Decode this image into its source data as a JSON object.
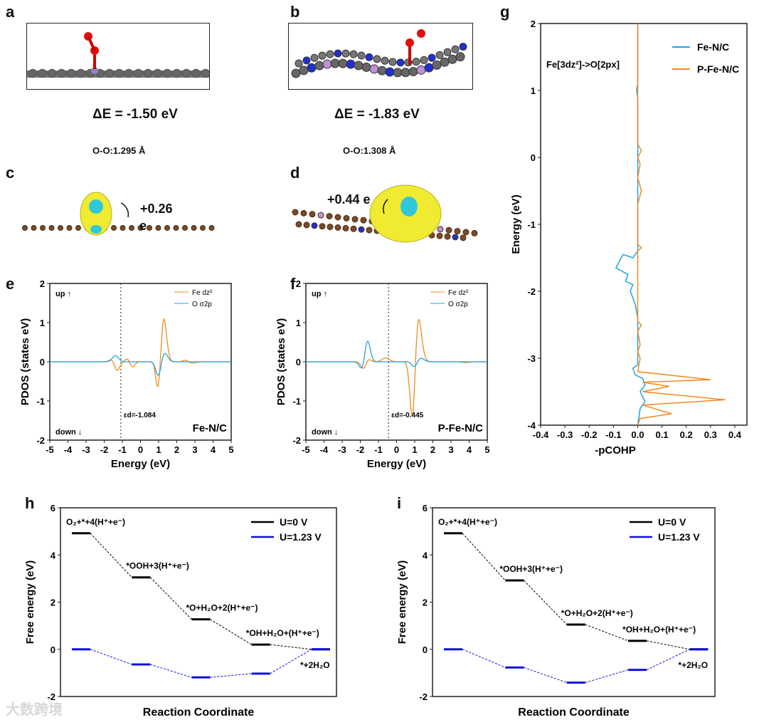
{
  "panels": {
    "a": "a",
    "b": "b",
    "c": "c",
    "d": "d",
    "e": "e",
    "f": "f",
    "g": "g",
    "h": "h",
    "i": "i"
  },
  "structures": {
    "a": {
      "delta_e": "ΔE = -1.50 eV",
      "oo": "O-O:1.295 Å"
    },
    "b": {
      "delta_e": "ΔE = -1.83 eV",
      "oo": "O-O:1.308 Å"
    },
    "c": {
      "charge": "+0.26",
      "unit": "e"
    },
    "d": {
      "charge": "+0.44 e"
    }
  },
  "watermark": "大数跨境",
  "colors": {
    "orange": "#f28a1e",
    "blue": "#1fa3e0",
    "black": "#000000",
    "navy": "#1010e0"
  },
  "chart_data": [
    {
      "id": "e",
      "type": "line",
      "title": "Fe-N/C",
      "xlabel": "Energy (eV)",
      "ylabel": "PDOS (states eV)",
      "xlim": [
        -5,
        5
      ],
      "ylim": [
        -2,
        2
      ],
      "xticks": [
        -5,
        -4,
        -3,
        -2,
        -1,
        0,
        1,
        2,
        3,
        4,
        5
      ],
      "yticks": [
        -2,
        -1,
        0,
        1,
        2
      ],
      "up": "up",
      "down": "down",
      "ed_label": "εd=-1.084",
      "ed": -1.084,
      "legend": [
        "Fe dz²",
        "O σ2p"
      ],
      "legend_position": "top-right",
      "series": [
        {
          "name": "Fe dz²",
          "color": "#f28a1e",
          "peaks": [
            [
              -1.4,
              0.48,
              0.18
            ],
            [
              -0.65,
              0.15,
              0.15
            ],
            [
              0.8,
              0.1,
              0.12
            ],
            [
              1.25,
              1.28,
              0.17
            ],
            [
              2.5,
              0.05,
              0.15
            ],
            [
              -1.35,
              -0.65,
              0.17
            ],
            [
              -0.5,
              -0.2,
              0.15
            ],
            [
              1.0,
              -1.0,
              0.15
            ],
            [
              2.8,
              -0.04,
              0.2
            ]
          ]
        },
        {
          "name": "O σ2p",
          "color": "#1fa3e0",
          "peaks": [
            [
              -1.35,
              0.25,
              0.18
            ],
            [
              1.3,
              0.25,
              0.18
            ],
            [
              -1.3,
              -0.1,
              0.18
            ],
            [
              1.0,
              -0.4,
              0.15
            ]
          ]
        }
      ]
    },
    {
      "id": "f",
      "type": "line",
      "title": "P-Fe-N/C",
      "xlabel": "Energy (eV)",
      "ylabel": "PDOS (states eV)",
      "xlim": [
        -5,
        5
      ],
      "ylim": [
        -2,
        2
      ],
      "xticks": [
        -5,
        -4,
        -3,
        -2,
        -1,
        0,
        1,
        2,
        3,
        4,
        5
      ],
      "yticks": [
        -2,
        -1,
        0,
        1,
        2
      ],
      "up": "up",
      "down": "down",
      "ed_label": "εd=-0.445",
      "ed": -0.445,
      "legend": [
        "Fe dz²",
        "O σ2p"
      ],
      "legend_position": "top-right",
      "series": [
        {
          "name": "Fe dz²",
          "color": "#f28a1e",
          "peaks": [
            [
              1.15,
              1.35,
              0.2
            ],
            [
              -0.6,
              0.1,
              0.2
            ],
            [
              3.8,
              0.08,
              0.2
            ],
            [
              0.9,
              -1.9,
              0.15
            ],
            [
              -1.8,
              -0.2,
              0.15
            ],
            [
              3.8,
              -0.1,
              0.2
            ],
            [
              -1.6,
              0.1,
              0.15
            ]
          ]
        },
        {
          "name": "O σ2p",
          "color": "#1fa3e0",
          "peaks": [
            [
              -1.6,
              0.55,
              0.15
            ],
            [
              1.3,
              0.1,
              0.2
            ],
            [
              -1.9,
              -0.2,
              0.15
            ],
            [
              1.0,
              -0.15,
              0.15
            ]
          ]
        }
      ]
    },
    {
      "id": "g",
      "type": "line",
      "title": "Fe[3dz²]->O[2px]",
      "xlabel": "-pCOHP",
      "ylabel": "Energy (eV)",
      "xlim": [
        -0.4,
        0.45
      ],
      "ylim": [
        -4,
        2
      ],
      "xticks": [
        -0.4,
        -0.3,
        -0.2,
        -0.1,
        0.0,
        0.1,
        0.2,
        0.3,
        0.4
      ],
      "yticks": [
        -4,
        -3,
        -2,
        -1,
        0,
        1,
        2
      ],
      "legend": [
        "Fe-N/C",
        "P-Fe-N/C"
      ],
      "legend_position": "top-right",
      "series": [
        {
          "name": "Fe-N/C",
          "color": "#1fa3e0",
          "points": [
            [
              0,
              2
            ],
            [
              0,
              1.1
            ],
            [
              -0.005,
              1.0
            ],
            [
              0,
              0.9
            ],
            [
              0,
              -1.4
            ],
            [
              -0.02,
              -1.5
            ],
            [
              -0.06,
              -1.45
            ],
            [
              -0.09,
              -1.65
            ],
            [
              -0.04,
              -1.75
            ],
            [
              -0.05,
              -1.85
            ],
            [
              -0.02,
              -1.9
            ],
            [
              -0.03,
              -2.0
            ],
            [
              -0.01,
              -2.2
            ],
            [
              0,
              -2.4
            ],
            [
              0,
              -3.1
            ],
            [
              -0.02,
              -3.15
            ],
            [
              -0.01,
              -3.25
            ],
            [
              0.02,
              -3.3
            ],
            [
              0.03,
              -3.4
            ],
            [
              0.01,
              -3.5
            ],
            [
              0.03,
              -3.65
            ],
            [
              0.01,
              -3.75
            ],
            [
              0,
              -4
            ]
          ]
        },
        {
          "name": "P-Fe-N/C",
          "color": "#f28a1e",
          "points": [
            [
              0,
              2
            ],
            [
              0,
              0.2
            ],
            [
              0.015,
              0.1
            ],
            [
              0,
              0
            ],
            [
              0.01,
              -0.1
            ],
            [
              0,
              -0.3
            ],
            [
              0.015,
              -0.5
            ],
            [
              0,
              -0.7
            ],
            [
              0,
              -1.3
            ],
            [
              0.015,
              -1.35
            ],
            [
              0,
              -1.4
            ],
            [
              0,
              -2.45
            ],
            [
              0.015,
              -2.5
            ],
            [
              0,
              -2.6
            ],
            [
              0.01,
              -2.8
            ],
            [
              0,
              -2.9
            ],
            [
              0.01,
              -3.0
            ],
            [
              0,
              -3.2
            ],
            [
              0.3,
              -3.32
            ],
            [
              0.02,
              -3.36
            ],
            [
              0.13,
              -3.42
            ],
            [
              0.02,
              -3.5
            ],
            [
              0.36,
              -3.62
            ],
            [
              0.02,
              -3.7
            ],
            [
              0.14,
              -3.83
            ],
            [
              0.01,
              -3.9
            ],
            [
              0,
              -4
            ]
          ]
        }
      ]
    },
    {
      "id": "h",
      "type": "line",
      "xlabel": "Reaction Coordinate",
      "ylabel": "Free energy (eV)",
      "ylim": [
        -2,
        6
      ],
      "yticks": [
        -2,
        0,
        2,
        4,
        6
      ],
      "legend": [
        "U=0 V",
        "U=1.23 V"
      ],
      "legend_position": "top-right",
      "steps": [
        "O₂+*+4(H⁺+e⁻)",
        "*OOH+3(H⁺+e⁻)",
        "*O+H₂O+2(H⁺+e⁻)",
        "*OH+H₂O+(H⁺+e⁻)",
        "*+2H₂O"
      ],
      "series": [
        {
          "name": "U=0 V",
          "color": "#000000",
          "values": [
            4.92,
            3.05,
            1.27,
            0.2,
            0
          ]
        },
        {
          "name": "U=1.23 V",
          "color": "#1010e0",
          "values": [
            0,
            -0.64,
            -1.19,
            -1.03,
            0
          ]
        }
      ]
    },
    {
      "id": "i",
      "type": "line",
      "xlabel": "Reaction Coordinate",
      "ylabel": "Free energy (eV)",
      "ylim": [
        -2,
        6
      ],
      "yticks": [
        -2,
        0,
        2,
        4,
        6
      ],
      "legend": [
        "U=0 V",
        "U=1.23 V"
      ],
      "legend_position": "top-right",
      "steps": [
        "O₂+*+4(H⁺+e⁻)",
        "*OOH+3(H⁺+e⁻)",
        "*O+H₂O+2(H⁺+e⁻)",
        "*OH+H₂O+(H⁺+e⁻)",
        "*+2H₂O"
      ],
      "series": [
        {
          "name": "U=0 V",
          "color": "#000000",
          "values": [
            4.92,
            2.92,
            1.05,
            0.36,
            0
          ]
        },
        {
          "name": "U=1.23 V",
          "color": "#1010e0",
          "values": [
            0,
            -0.77,
            -1.41,
            -0.87,
            0
          ]
        }
      ]
    }
  ]
}
